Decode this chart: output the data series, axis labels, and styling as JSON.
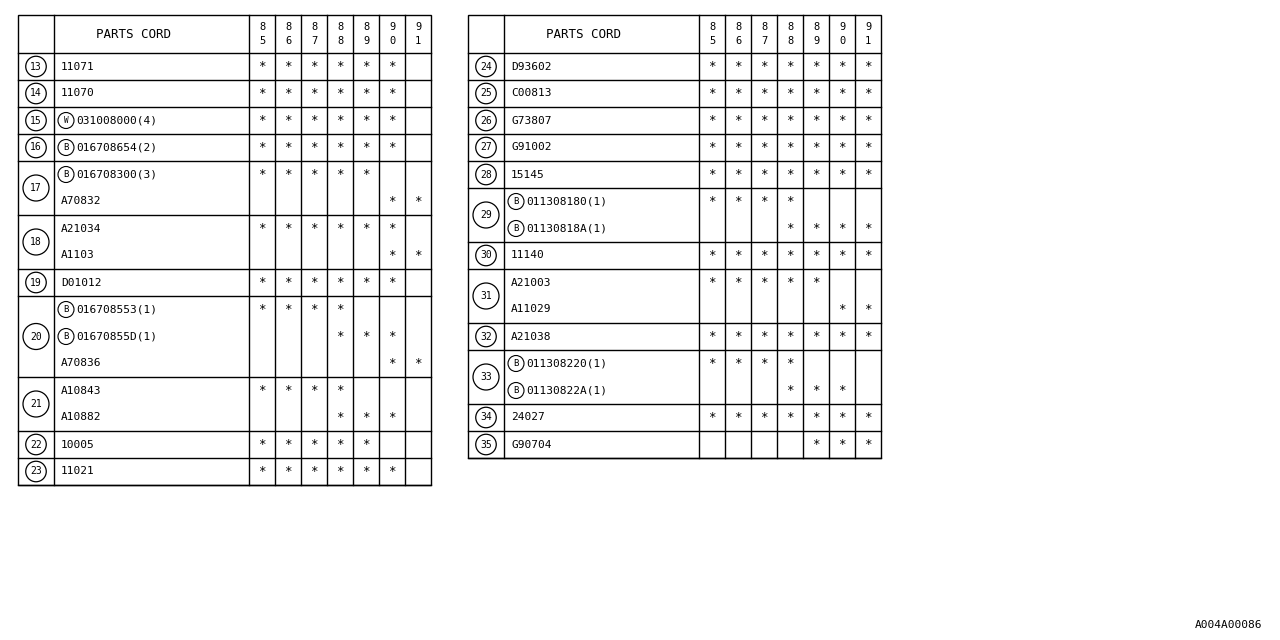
{
  "bg_color": "#ffffff",
  "line_color": "#000000",
  "text_color": "#000000",
  "left_table": {
    "header": "PARTS CORD",
    "year_cols": [
      "85",
      "86",
      "87",
      "88",
      "89",
      "90",
      "91"
    ],
    "n_years": 7,
    "rows": [
      {
        "num": "13",
        "sub_rows": [
          {
            "prefix": "",
            "part": "11071",
            "stars": [
              1,
              1,
              1,
              1,
              1,
              1,
              0
            ]
          }
        ]
      },
      {
        "num": "14",
        "sub_rows": [
          {
            "prefix": "",
            "part": "11070",
            "stars": [
              1,
              1,
              1,
              1,
              1,
              1,
              0
            ]
          }
        ]
      },
      {
        "num": "15",
        "sub_rows": [
          {
            "prefix": "W",
            "part": "031008000(4)",
            "stars": [
              1,
              1,
              1,
              1,
              1,
              1,
              0
            ]
          }
        ]
      },
      {
        "num": "16",
        "sub_rows": [
          {
            "prefix": "B",
            "part": "016708654(2)",
            "stars": [
              1,
              1,
              1,
              1,
              1,
              1,
              0
            ]
          }
        ]
      },
      {
        "num": "17",
        "sub_rows": [
          {
            "prefix": "B",
            "part": "016708300(3)",
            "stars": [
              1,
              1,
              1,
              1,
              1,
              0,
              0
            ]
          },
          {
            "prefix": "",
            "part": "A70832",
            "stars": [
              0,
              0,
              0,
              0,
              0,
              1,
              1
            ]
          }
        ]
      },
      {
        "num": "18",
        "sub_rows": [
          {
            "prefix": "",
            "part": "A21034",
            "stars": [
              1,
              1,
              1,
              1,
              1,
              1,
              0
            ]
          },
          {
            "prefix": "",
            "part": "A1103",
            "stars": [
              0,
              0,
              0,
              0,
              0,
              1,
              1
            ]
          }
        ]
      },
      {
        "num": "19",
        "sub_rows": [
          {
            "prefix": "",
            "part": "D01012",
            "stars": [
              1,
              1,
              1,
              1,
              1,
              1,
              0
            ]
          }
        ]
      },
      {
        "num": "20",
        "sub_rows": [
          {
            "prefix": "B",
            "part": "016708553(1)",
            "stars": [
              1,
              1,
              1,
              1,
              0,
              0,
              0
            ]
          },
          {
            "prefix": "B",
            "part": "01670855D(1)",
            "stars": [
              0,
              0,
              0,
              1,
              1,
              1,
              0
            ]
          },
          {
            "prefix": "",
            "part": "A70836",
            "stars": [
              0,
              0,
              0,
              0,
              0,
              1,
              1
            ]
          }
        ]
      },
      {
        "num": "21",
        "sub_rows": [
          {
            "prefix": "",
            "part": "A10843",
            "stars": [
              1,
              1,
              1,
              1,
              0,
              0,
              0
            ]
          },
          {
            "prefix": "",
            "part": "A10882",
            "stars": [
              0,
              0,
              0,
              1,
              1,
              1,
              0
            ]
          }
        ]
      },
      {
        "num": "22",
        "sub_rows": [
          {
            "prefix": "",
            "part": "10005",
            "stars": [
              1,
              1,
              1,
              1,
              1,
              0,
              0
            ]
          }
        ]
      },
      {
        "num": "23",
        "sub_rows": [
          {
            "prefix": "",
            "part": "11021",
            "stars": [
              1,
              1,
              1,
              1,
              1,
              1,
              0
            ]
          }
        ]
      }
    ]
  },
  "right_table": {
    "header": "PARTS CORD",
    "year_cols": [
      "85",
      "86",
      "87",
      "88",
      "89",
      "90",
      "91"
    ],
    "n_years": 7,
    "rows": [
      {
        "num": "24",
        "sub_rows": [
          {
            "prefix": "",
            "part": "D93602",
            "stars": [
              1,
              1,
              1,
              1,
              1,
              1,
              1
            ]
          }
        ]
      },
      {
        "num": "25",
        "sub_rows": [
          {
            "prefix": "",
            "part": "C00813",
            "stars": [
              1,
              1,
              1,
              1,
              1,
              1,
              1
            ]
          }
        ]
      },
      {
        "num": "26",
        "sub_rows": [
          {
            "prefix": "",
            "part": "G73807",
            "stars": [
              1,
              1,
              1,
              1,
              1,
              1,
              1
            ]
          }
        ]
      },
      {
        "num": "27",
        "sub_rows": [
          {
            "prefix": "",
            "part": "G91002",
            "stars": [
              1,
              1,
              1,
              1,
              1,
              1,
              1
            ]
          }
        ]
      },
      {
        "num": "28",
        "sub_rows": [
          {
            "prefix": "",
            "part": "15145",
            "stars": [
              1,
              1,
              1,
              1,
              1,
              1,
              1
            ]
          }
        ]
      },
      {
        "num": "29",
        "sub_rows": [
          {
            "prefix": "B",
            "part": "011308180(1)",
            "stars": [
              1,
              1,
              1,
              1,
              0,
              0,
              0
            ]
          },
          {
            "prefix": "B",
            "part": "01130818A(1)",
            "stars": [
              0,
              0,
              0,
              1,
              1,
              1,
              1
            ]
          }
        ]
      },
      {
        "num": "30",
        "sub_rows": [
          {
            "prefix": "",
            "part": "11140",
            "stars": [
              1,
              1,
              1,
              1,
              1,
              1,
              1
            ]
          }
        ]
      },
      {
        "num": "31",
        "sub_rows": [
          {
            "prefix": "",
            "part": "A21003",
            "stars": [
              1,
              1,
              1,
              1,
              1,
              0,
              0
            ]
          },
          {
            "prefix": "",
            "part": "A11029",
            "stars": [
              0,
              0,
              0,
              0,
              0,
              1,
              1
            ]
          }
        ]
      },
      {
        "num": "32",
        "sub_rows": [
          {
            "prefix": "",
            "part": "A21038",
            "stars": [
              1,
              1,
              1,
              1,
              1,
              1,
              1
            ]
          }
        ]
      },
      {
        "num": "33",
        "sub_rows": [
          {
            "prefix": "B",
            "part": "011308220(1)",
            "stars": [
              1,
              1,
              1,
              1,
              0,
              0,
              0
            ]
          },
          {
            "prefix": "B",
            "part": "01130822A(1)",
            "stars": [
              0,
              0,
              0,
              1,
              1,
              1,
              0
            ]
          }
        ]
      },
      {
        "num": "34",
        "sub_rows": [
          {
            "prefix": "",
            "part": "24027",
            "stars": [
              1,
              1,
              1,
              1,
              1,
              1,
              1
            ]
          }
        ]
      },
      {
        "num": "35",
        "sub_rows": [
          {
            "prefix": "",
            "part": "G90704",
            "stars": [
              0,
              0,
              0,
              0,
              1,
              1,
              1
            ]
          }
        ]
      }
    ]
  },
  "footer": "A004A00086"
}
